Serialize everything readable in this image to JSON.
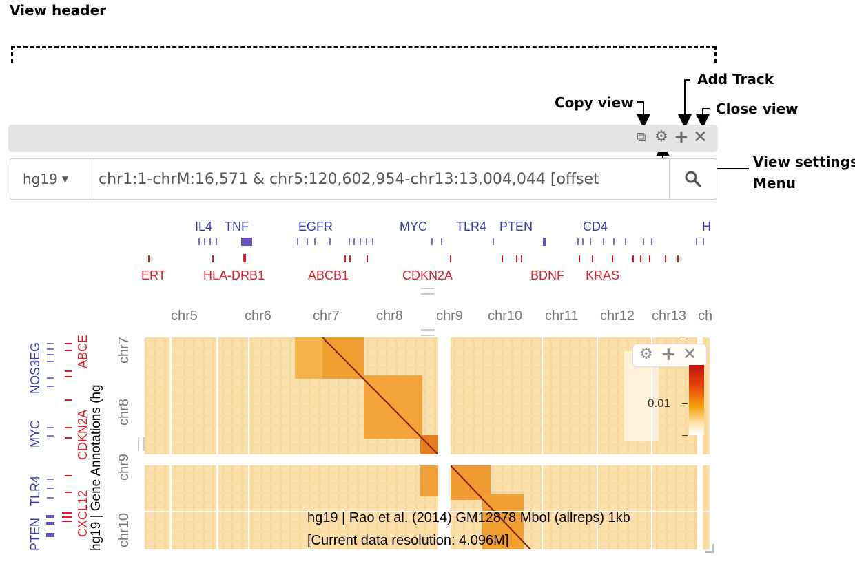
{
  "annotations": {
    "view_header": "View header",
    "copy_view": "Copy view",
    "add_track": "Add Track",
    "close_view": "Close view",
    "view_settings_line1": "View settings",
    "view_settings_line2": "Menu"
  },
  "view_bar": {
    "icons": [
      "copy-icon",
      "gear-icon",
      "plus-icon",
      "close-icon"
    ]
  },
  "genome_search": {
    "assembly": "hg19",
    "location": "chr1:1-chrM:16,571 & chr5:120,602,954-chr13:13,004,044 [offset"
  },
  "top_genes": {
    "blue": [
      "IL4",
      "TNF",
      "EGFR",
      "MYC",
      "TLR4",
      "PTEN",
      "CD4",
      "H"
    ],
    "red": [
      "ERT",
      "HLA-DRB1",
      "ABCB1",
      "CDKN2A",
      "BDNF",
      "KRAS"
    ]
  },
  "chromosome_axis": [
    "chr5",
    "chr6",
    "chr7",
    "chr8",
    "chr9",
    "chr10",
    "chr11",
    "chr12",
    "chr13",
    "ch"
  ],
  "left_genes": {
    "blue": [
      "NOS3EG",
      "MYC",
      "TLR4",
      "PTEN"
    ],
    "red": [
      "ABCE",
      "CDKN2A",
      "CXCL12"
    ]
  },
  "left_track_title": "hg19 | Gene Annotations (hg",
  "left_chromosomes": [
    "chr7",
    "chr8",
    "chr9",
    "chr10"
  ],
  "heatmap": {
    "legend_value": "0.01",
    "caption_line1": "hg19 | Rao et al. (2014) GM12878 MboI (allreps) 1kb",
    "caption_line2": "[Current data resolution: 4.096M]",
    "colors": {
      "low": "#fde9b8",
      "mid": "#f7a20c",
      "high": "#c21212"
    }
  }
}
